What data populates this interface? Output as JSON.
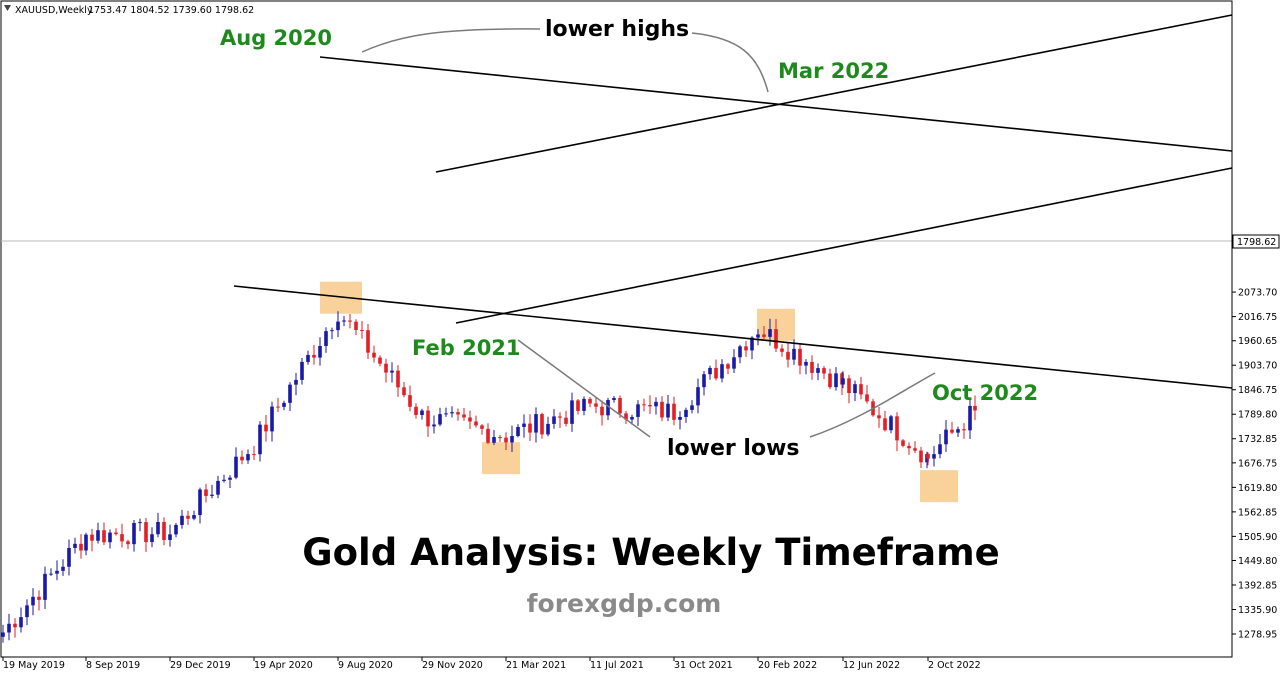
{
  "header": {
    "symbol": "XAUUSD,Weekly",
    "ohlc": "1753.47 1804.52 1739.60 1798.62"
  },
  "title": "Gold Analysis: Weekly Timeframe",
  "watermark": "forexgdp.com",
  "colors": {
    "bull": "#1a1aa8",
    "bear": "#e31e24",
    "annotation_green": "#1e8a1e",
    "highlight": "#f7c98a",
    "trendline": "#000000",
    "pointer": "#7a7a7a"
  },
  "annotations": {
    "aug2020": "Aug 2020",
    "mar2022": "Mar 2022",
    "feb2021": "Feb 2021",
    "oct2022": "Oct 2022",
    "lower_highs": "lower highs",
    "lower_lows": "lower lows"
  },
  "chart_data": {
    "type": "candlestick",
    "symbol": "XAUUSD",
    "timeframe": "Weekly",
    "ylim": [
      1250,
      2125
    ],
    "price_ticks": [
      "2073.70",
      "2016.75",
      "1960.65",
      "1903.70",
      "1846.75",
      "1789.80",
      "1732.85",
      "1676.75",
      "1619.80",
      "1562.85",
      "1505.90",
      "1449.80",
      "1392.85",
      "1335.90",
      "1278.95"
    ],
    "current_price": "1798.62",
    "date_labels": [
      "19 May 2019",
      "8 Sep 2019",
      "29 Dec 2019",
      "19 Apr 2020",
      "9 Aug 2020",
      "29 Nov 2020",
      "21 Mar 2021",
      "11 Jul 2021",
      "31 Oct 2021",
      "20 Feb 2022",
      "12 Jun 2022",
      "2 Oct 2022"
    ],
    "anchors": [
      {
        "date": "19 May 2019",
        "price": 1283
      },
      {
        "date": "8 Sep 2019",
        "price": 1510
      },
      {
        "date": "29 Dec 2019",
        "price": 1515
      },
      {
        "date": "19 Apr 2020",
        "price": 1720
      },
      {
        "date": "9 Aug 2020",
        "price": 2030
      },
      {
        "date": "29 Nov 2020",
        "price": 1785
      },
      {
        "date": "21 Mar 2021",
        "price": 1740
      },
      {
        "date": "11 Jul 2021",
        "price": 1810
      },
      {
        "date": "31 Oct 2021",
        "price": 1795
      },
      {
        "date": "20 Feb 2022",
        "price": 1990
      },
      {
        "date": "12 Jun 2022",
        "price": 1860
      },
      {
        "date": "2 Oct 2022",
        "price": 1690
      },
      {
        "date": "current",
        "price": 1798.62
      }
    ],
    "swing_points": [
      {
        "label": "Aug 2020",
        "price": 2063
      },
      {
        "label": "Feb 2021",
        "price": 1690
      },
      {
        "label": "Mar 2022",
        "price": 2000
      },
      {
        "label": "Oct 2022",
        "price": 1625
      }
    ]
  }
}
